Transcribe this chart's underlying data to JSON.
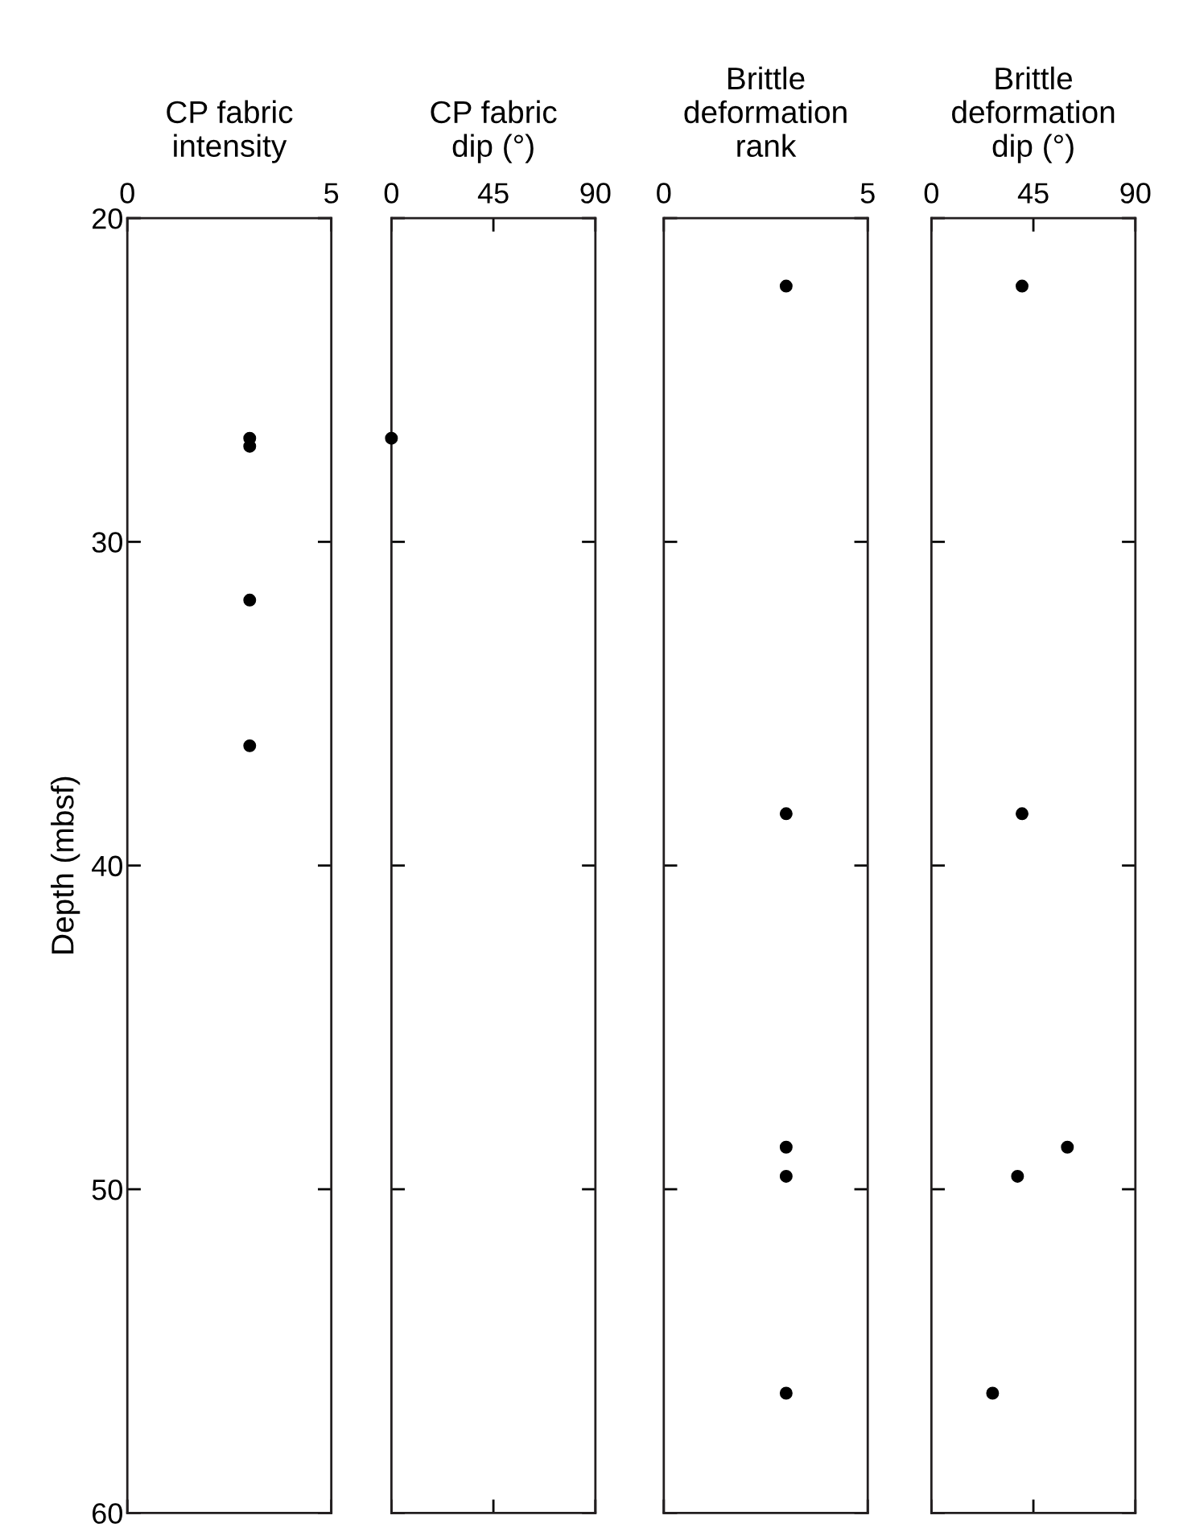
{
  "chart_data": [
    {
      "type": "scatter",
      "title": "CP fabric\nintensity",
      "ylabel": "Depth (mbsf)",
      "x": [
        3,
        3,
        3,
        3
      ],
      "values": [
        26.8,
        27.05,
        31.8,
        36.3
      ],
      "color": "#000000",
      "xlim": [
        0,
        5
      ],
      "xticks": [
        0,
        5
      ],
      "ylim": [
        60,
        20
      ],
      "yticks": [
        20,
        30,
        40,
        50,
        60
      ],
      "marker": "circle",
      "grid": false,
      "legend": false
    },
    {
      "type": "scatter",
      "title": "CP fabric\ndip (°)",
      "x": [
        0
      ],
      "values": [
        26.8
      ],
      "color": "#000000",
      "xlim": [
        0,
        90
      ],
      "xticks": [
        0,
        45,
        90
      ],
      "ylim": [
        60,
        20
      ],
      "yticks": [
        20,
        30,
        40,
        50,
        60
      ],
      "marker": "circle",
      "grid": false,
      "legend": false,
      "tick_labels": "x"
    },
    {
      "type": "scatter",
      "title": "Brittle\ndeformation\nrank",
      "x": [
        3,
        3,
        3,
        3,
        3
      ],
      "values": [
        22.1,
        38.4,
        48.7,
        49.6,
        56.3
      ],
      "color": "#000000",
      "xlim": [
        0,
        5
      ],
      "xticks": [
        0,
        5
      ],
      "ylim": [
        60,
        20
      ],
      "yticks": [
        20,
        30,
        40,
        50,
        60
      ],
      "marker": "circle",
      "grid": false,
      "legend": false,
      "tick_labels": "x"
    },
    {
      "type": "scatter",
      "title": "Brittle\ndeformation\ndip (°)",
      "x": [
        40,
        40,
        60,
        38,
        27
      ],
      "values": [
        22.1,
        38.4,
        48.7,
        49.6,
        56.3
      ],
      "color": "#000000",
      "xlim": [
        0,
        90
      ],
      "xticks": [
        0,
        45,
        90
      ],
      "ylim": [
        60,
        20
      ],
      "yticks": [
        20,
        30,
        40,
        50,
        60
      ],
      "marker": "circle",
      "grid": false,
      "legend": false,
      "tick_labels": "x"
    }
  ]
}
